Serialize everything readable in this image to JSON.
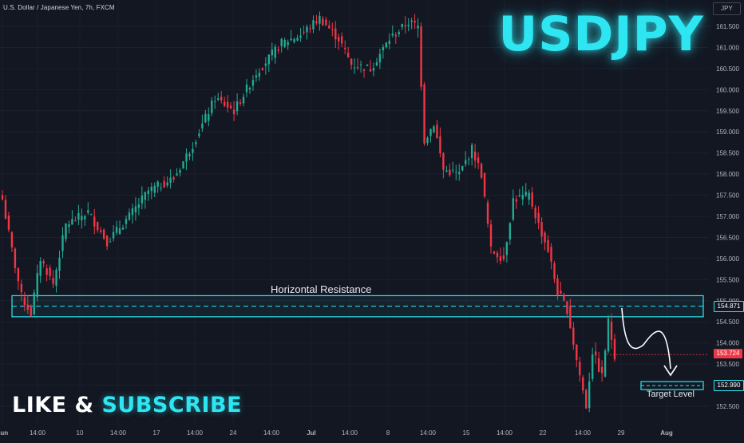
{
  "header": {
    "symbol_info": "U.S. Dollar / Japanese Yen, 7h, FXCM",
    "ticker": "USDJPY",
    "currency": "JPY"
  },
  "cta": {
    "like": "LIKE",
    "amp": "&",
    "subscribe": "SUBSCRIBE"
  },
  "annotations": {
    "zone_label": "Horizontal Resistance",
    "target_label": "Target Level"
  },
  "price_badges": {
    "resistance": "154.871",
    "last": "153.724",
    "target": "152.990"
  },
  "colors": {
    "up": "#22ab94",
    "down": "#f23645",
    "accent": "#2ee6f2",
    "background": "#131722"
  },
  "chart_data": {
    "type": "candlestick",
    "y_axis_side": "right",
    "ylim": [
      152.2,
      161.9
    ],
    "y_ticks": [
      "161.500",
      "161.000",
      "160.500",
      "160.000",
      "159.500",
      "159.000",
      "158.500",
      "158.000",
      "157.500",
      "157.000",
      "156.500",
      "156.000",
      "155.500",
      "155.000",
      "154.500",
      "154.000",
      "153.500",
      "153.000",
      "152.500"
    ],
    "x_tick_labels": [
      "Jun",
      "14:00",
      "10",
      "14:00",
      "17",
      "14:00",
      "24",
      "14:00",
      "Jul",
      "14:00",
      "8",
      "14:00",
      "15",
      "14:00",
      "22",
      "14:00",
      "29",
      "Aug"
    ],
    "resistance_zone": [
      154.62,
      155.12
    ],
    "resistance_level": 154.871,
    "target_level": 152.99,
    "last_price": 153.724,
    "anchors": [
      [
        0,
        157.4
      ],
      [
        3,
        156.2
      ],
      [
        6,
        155.1
      ],
      [
        9,
        154.7
      ],
      [
        12,
        156.0
      ],
      [
        16,
        155.4
      ],
      [
        20,
        156.8
      ],
      [
        27,
        157.1
      ],
      [
        33,
        156.4
      ],
      [
        40,
        157.0
      ],
      [
        46,
        157.6
      ],
      [
        54,
        157.9
      ],
      [
        60,
        158.7
      ],
      [
        67,
        159.8
      ],
      [
        73,
        159.5
      ],
      [
        80,
        160.4
      ],
      [
        88,
        161.1
      ],
      [
        94,
        161.3
      ],
      [
        100,
        161.7
      ],
      [
        106,
        161.2
      ],
      [
        110,
        160.6
      ],
      [
        116,
        160.5
      ],
      [
        122,
        161.2
      ],
      [
        128,
        161.6
      ],
      [
        131,
        161.5
      ],
      [
        133,
        158.8
      ],
      [
        136,
        159.2
      ],
      [
        139,
        158.1
      ],
      [
        144,
        158.0
      ],
      [
        148,
        158.6
      ],
      [
        151,
        158.0
      ],
      [
        154,
        156.2
      ],
      [
        158,
        156.0
      ],
      [
        161,
        157.4
      ],
      [
        166,
        157.5
      ],
      [
        169,
        156.8
      ],
      [
        172,
        156.2
      ],
      [
        175,
        155.2
      ],
      [
        178,
        154.8
      ],
      [
        181,
        153.6
      ],
      [
        184,
        152.5
      ],
      [
        186,
        153.8
      ],
      [
        189,
        153.2
      ],
      [
        191,
        154.5
      ],
      [
        193,
        153.72
      ]
    ]
  }
}
